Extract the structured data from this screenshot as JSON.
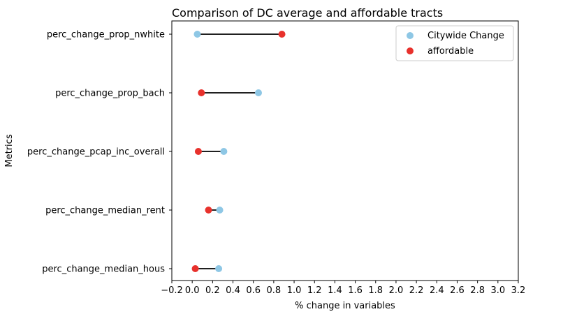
{
  "chart_data": {
    "type": "scatter",
    "title": "Comparison of DC average and affordable tracts",
    "xlabel": "% change in variables",
    "ylabel": "Metrics",
    "xlim": [
      -0.2,
      3.2
    ],
    "xticks": [
      "−0.2",
      "0.0",
      "0.2",
      "0.4",
      "0.6",
      "0.8",
      "1.0",
      "1.2",
      "1.4",
      "1.6",
      "1.8",
      "2.0",
      "2.2",
      "2.4",
      "2.6",
      "2.8",
      "3.0",
      "3.2"
    ],
    "categories": [
      "perc_change_median_hous",
      "perc_change_median_rent",
      "perc_change_pcap_inc_overall",
      "perc_change_prop_bach",
      "perc_change_prop_nwhite"
    ],
    "series": [
      {
        "name": "Citywide Change",
        "color": "#8ec7e5",
        "values": [
          0.26,
          0.27,
          0.31,
          0.65,
          0.05
        ]
      },
      {
        "name": "affordable",
        "color": "#e8312c",
        "values": [
          0.03,
          0.16,
          0.06,
          0.09,
          0.88
        ]
      }
    ],
    "connector_color": "#000000",
    "legend_position": "top-right",
    "grid": false
  }
}
